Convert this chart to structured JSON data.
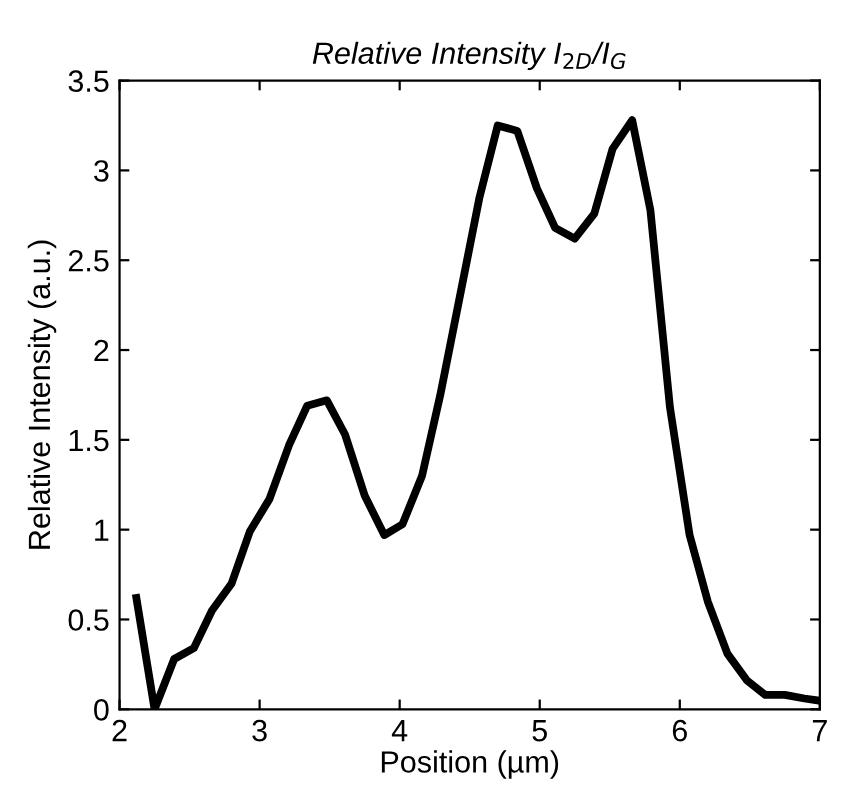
{
  "chart_data": {
    "type": "line",
    "title": "Relative Intensity I$_{2D}$/I$_{G}$",
    "xlabel": "Position (µm)",
    "ylabel": "Relative Intensity (a.u.)",
    "x": [
      2.12,
      2.25,
      2.39,
      2.53,
      2.66,
      2.8,
      2.93,
      3.07,
      3.21,
      3.34,
      3.48,
      3.61,
      3.75,
      3.89,
      4.02,
      4.16,
      4.29,
      4.43,
      4.57,
      4.7,
      4.84,
      4.98,
      5.11,
      5.25,
      5.39,
      5.52,
      5.66,
      5.79,
      5.93,
      6.07,
      6.2,
      6.34,
      6.48,
      6.61,
      6.75,
      6.89,
      6.98
    ],
    "series": [
      {
        "color": "#000000",
        "values": [
          0.62,
          0.0,
          0.28,
          0.34,
          0.55,
          0.7,
          0.99,
          1.17,
          1.47,
          1.69,
          1.72,
          1.53,
          1.19,
          0.97,
          1.03,
          1.3,
          1.75,
          2.3,
          2.85,
          3.25,
          3.22,
          2.9,
          2.68,
          2.62,
          2.76,
          3.12,
          3.28,
          2.78,
          1.68,
          0.97,
          0.6,
          0.31,
          0.16,
          0.08,
          0.08,
          0.06,
          0.05
        ]
      }
    ],
    "xlim": [
      2,
      7
    ],
    "xticks": [
      2,
      3,
      4,
      5,
      6,
      7
    ],
    "ylim": [
      0,
      3.5
    ],
    "yticks": [
      0,
      0.5,
      1,
      1.5,
      2,
      2.5,
      3,
      3.5
    ],
    "grid": false,
    "legend": false,
    "marker": "none",
    "line_style": "solid"
  }
}
